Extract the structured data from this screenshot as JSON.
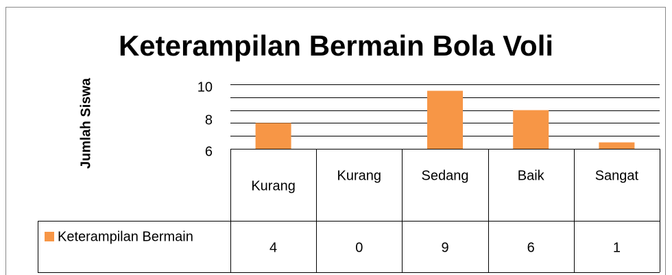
{
  "chart_data": {
    "type": "bar",
    "title": "Keterampilan Bermain Bola Voli",
    "y_label": "Jumlah Siswa",
    "categories": [
      "Kurang",
      "Kurang",
      "Sedang",
      "Baik",
      "Sangat"
    ],
    "series": [
      {
        "name": "Keterampilan Bermain",
        "color": "#f79646",
        "values": [
          4,
          0,
          9,
          6,
          1
        ]
      }
    ],
    "ylim": [
      0,
      10
    ],
    "yticks": [
      0,
      2,
      4,
      6,
      8,
      10
    ],
    "ytick_labels": [
      10,
      8,
      6
    ],
    "grid": true,
    "data_table": true
  }
}
